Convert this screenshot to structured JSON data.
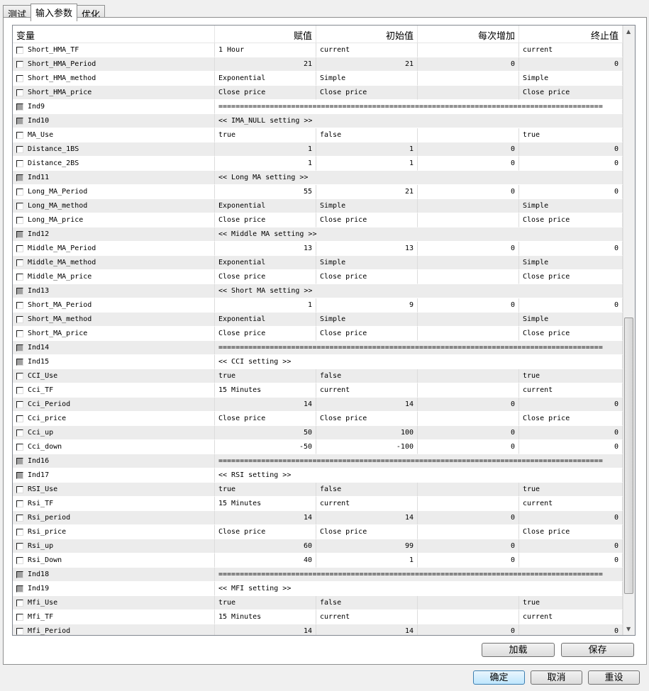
{
  "tabs": [
    "测试",
    "输入参数",
    "优化"
  ],
  "columns": [
    "变量",
    "赋值",
    "初始值",
    "每次增加",
    "终止值"
  ],
  "rows": [
    [
      "Short_HMA_TF",
      "1 Hour",
      "current",
      "",
      "current"
    ],
    [
      "Short_HMA_Period",
      "21",
      "21",
      "0",
      "0"
    ],
    [
      "Short_HMA_method",
      "Exponential",
      "Simple",
      "",
      "Simple"
    ],
    [
      "Short_HMA_price",
      "Close price",
      "Close price",
      "",
      "Close price"
    ],
    [
      "Ind9",
      "=========================================================================================="
    ],
    [
      "Ind10",
      "<< IMA_NULL setting >>"
    ],
    [
      "MA_Use",
      "true",
      "false",
      "",
      "true"
    ],
    [
      "Distance_1BS",
      "1",
      "1",
      "0",
      "0"
    ],
    [
      "Distance_2BS",
      "1",
      "1",
      "0",
      "0"
    ],
    [
      "Ind11",
      "<< Long MA setting >>"
    ],
    [
      "Long_MA_Period",
      "55",
      "21",
      "0",
      "0"
    ],
    [
      "Long_MA_method",
      "Exponential",
      "Simple",
      "",
      "Simple"
    ],
    [
      "Long_MA_price",
      "Close price",
      "Close price",
      "",
      "Close price"
    ],
    [
      "Ind12",
      "<< Middle MA setting >>"
    ],
    [
      "Middle_MA_Period",
      "13",
      "13",
      "0",
      "0"
    ],
    [
      "Middle_MA_method",
      "Exponential",
      "Simple",
      "",
      "Simple"
    ],
    [
      "Middle_MA_price",
      "Close price",
      "Close price",
      "",
      "Close price"
    ],
    [
      "Ind13",
      "<< Short MA setting >>"
    ],
    [
      "Short_MA_Period",
      "1",
      "9",
      "0",
      "0"
    ],
    [
      "Short_MA_method",
      "Exponential",
      "Simple",
      "",
      "Simple"
    ],
    [
      "Short_MA_price",
      "Close price",
      "Close price",
      "",
      "Close price"
    ],
    [
      "Ind14",
      "=========================================================================================="
    ],
    [
      "Ind15",
      "<< CCI setting >>"
    ],
    [
      "CCI_Use",
      "true",
      "false",
      "",
      "true"
    ],
    [
      "Cci_TF",
      "15 Minutes",
      "current",
      "",
      "current"
    ],
    [
      "Cci_Period",
      "14",
      "14",
      "0",
      "0"
    ],
    [
      "Cci_price",
      "Close price",
      "Close price",
      "",
      "Close price"
    ],
    [
      "Cci_up",
      "50",
      "100",
      "0",
      "0"
    ],
    [
      "Cci_down",
      "-50",
      "-100",
      "0",
      "0"
    ],
    [
      "Ind16",
      "=========================================================================================="
    ],
    [
      "Ind17",
      "<< RSI setting >>"
    ],
    [
      "RSI_Use",
      "true",
      "false",
      "",
      "true"
    ],
    [
      "Rsi_TF",
      "15 Minutes",
      "current",
      "",
      "current"
    ],
    [
      "Rsi_period",
      "14",
      "14",
      "0",
      "0"
    ],
    [
      "Rsi_price",
      "Close price",
      "Close price",
      "",
      "Close price"
    ],
    [
      "Rsi_up",
      "60",
      "99",
      "0",
      "0"
    ],
    [
      "Rsi_Down",
      "40",
      "1",
      "0",
      "0"
    ],
    [
      "Ind18",
      "=========================================================================================="
    ],
    [
      "Ind19",
      "<< MFI setting >>"
    ],
    [
      "Mfi_Use",
      "true",
      "false",
      "",
      "true"
    ],
    [
      "Mfi_TF",
      "15 Minutes",
      "current",
      "",
      "current"
    ],
    [
      "Mfi_Period",
      "14",
      "14",
      "0",
      "0"
    ]
  ],
  "buttons": {
    "load": "加载",
    "save": "保存",
    "ok": "确定",
    "cancel": "取消",
    "reset": "重设"
  }
}
